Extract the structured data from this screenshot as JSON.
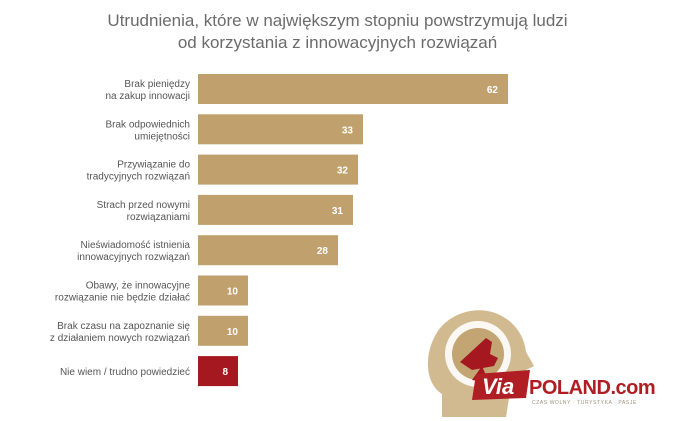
{
  "title_lines": [
    "Utrudnienia, które w największym stopniu powstrzymują ludzi",
    "od korzystania z innowacyjnych rozwiązań"
  ],
  "colors": {
    "bar": "#c0a06c",
    "highlight_bar": "#a5181f",
    "label": "#555555",
    "brand_red": "#b01e24"
  },
  "chart_data": {
    "type": "bar",
    "orientation": "horizontal",
    "title": "Utrudnienia, które w największym stopniu powstrzymują ludzi od korzystania z innowacyjnych rozwiązań",
    "categories": [
      [
        "Brak pieniędzy",
        "na zakup innowacji"
      ],
      [
        "Brak odpowiednich",
        "umiejętności"
      ],
      [
        "Przywiązanie do",
        "tradycyjnych rozwiązań"
      ],
      [
        "Strach przed nowymi",
        "rozwiązaniami"
      ],
      [
        "Nieświadomość istnienia",
        "innowacyjnych rozwiązań"
      ],
      [
        "Obawy, że innowacyjne",
        "rozwiązanie nie będzie działać"
      ],
      [
        "Brak czasu na zapoznanie się",
        "z działaniem nowych rozwiązań"
      ],
      [
        "Nie wiem / trudno powiedzieć"
      ]
    ],
    "values": [
      62,
      33,
      32,
      31,
      28,
      10,
      10,
      8
    ],
    "highlighted": [
      false,
      false,
      false,
      false,
      false,
      false,
      false,
      true
    ],
    "grid": false,
    "legend": "none"
  },
  "logo": {
    "via": "Via",
    "poland": "POLAND.com",
    "tagline": "CZAS WOLNY · TURYSTYKA · PASJE"
  }
}
